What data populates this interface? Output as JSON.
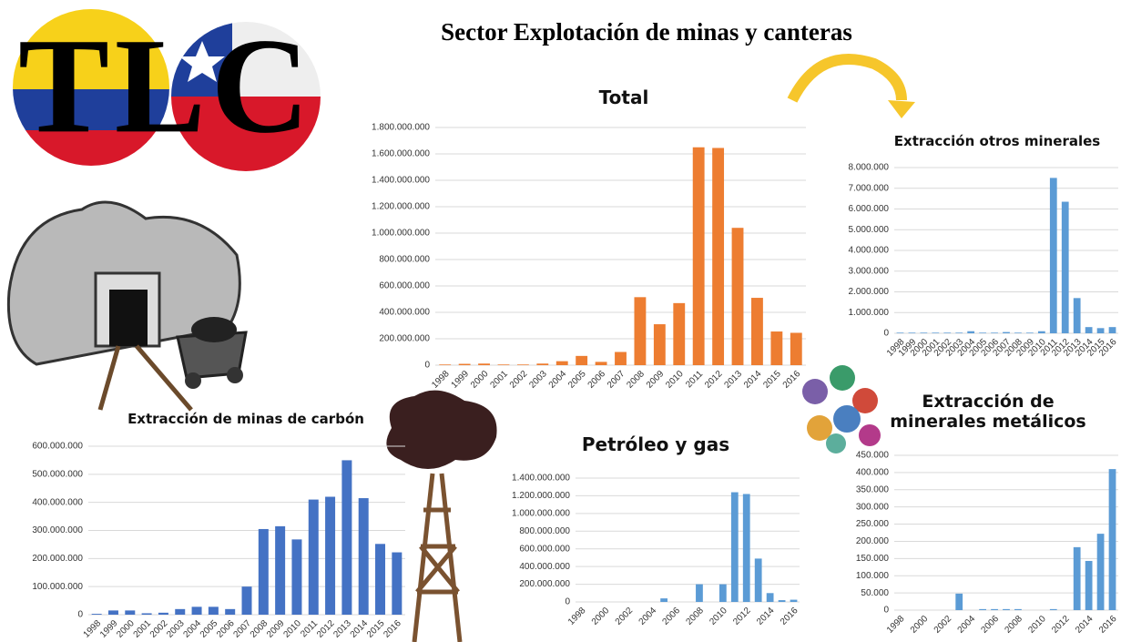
{
  "title": "Sector Explotación de minas y canteras",
  "logo": "TLC",
  "chart_data": [
    {
      "type": "bar",
      "title": "Total",
      "color": "#ed7d31",
      "grid": true,
      "categories": [
        "1998",
        "1999",
        "2000",
        "2001",
        "2002",
        "2003",
        "2004",
        "2005",
        "2006",
        "2007",
        "2008",
        "2009",
        "2010",
        "2011",
        "2012",
        "2013",
        "2014",
        "2015",
        "2016"
      ],
      "values": [
        5000000,
        10000000,
        12000000,
        5000000,
        5000000,
        12000000,
        30000000,
        70000000,
        25000000,
        100000000,
        515000000,
        310000000,
        470000000,
        1650000000,
        1645000000,
        1040000000,
        510000000,
        255000000,
        245000000
      ],
      "ylim": [
        0,
        1800000000
      ],
      "yticks": [
        0,
        {
          "value": 200000000,
          "label": "200.000.000"
        },
        {
          "value": 400000000,
          "label": "400.000.000"
        },
        {
          "value": 600000000,
          "label": "600.000.000"
        },
        {
          "value": 800000000,
          "label": "800.000.000"
        },
        {
          "value": 1000000000,
          "label": "1.000.000.000"
        },
        {
          "value": 1200000000,
          "label": "1.200.000.000"
        },
        {
          "value": 1400000000,
          "label": "1.400.000.000"
        },
        {
          "value": 1600000000,
          "label": "1.600.000.000"
        },
        {
          "value": 1800000000,
          "label": "1.800.000.000"
        }
      ]
    },
    {
      "type": "bar",
      "title": "Extracción otros minerales",
      "color": "#5b9bd5",
      "grid": true,
      "categories": [
        "1998",
        "1999",
        "2000",
        "2001",
        "2002",
        "2003",
        "2004",
        "2005",
        "2006",
        "2007",
        "2008",
        "2009",
        "2010",
        "2011",
        "2012",
        "2013",
        "2014",
        "2015",
        "2016"
      ],
      "values": [
        30000,
        30000,
        30000,
        30000,
        30000,
        30000,
        100000,
        30000,
        30000,
        60000,
        30000,
        30000,
        100000,
        7500000,
        6350000,
        1700000,
        300000,
        250000,
        300000
      ],
      "ylim": [
        0,
        8000000
      ],
      "yticks": [
        0,
        {
          "value": 1000000,
          "label": "1.000.000"
        },
        {
          "value": 2000000,
          "label": "2.000.000"
        },
        {
          "value": 3000000,
          "label": "3.000.000"
        },
        {
          "value": 4000000,
          "label": "4.000.000"
        },
        {
          "value": 5000000,
          "label": "5.000.000"
        },
        {
          "value": 6000000,
          "label": "6.000.000"
        },
        {
          "value": 7000000,
          "label": "7.000.000"
        },
        {
          "value": 8000000,
          "label": "8.000.000"
        }
      ]
    },
    {
      "type": "bar",
      "title": "Extracción de minas de carbón",
      "color": "#4472c4",
      "grid": true,
      "categories": [
        "1998",
        "1999",
        "2000",
        "2001",
        "2002",
        "2003",
        "2004",
        "2005",
        "2006",
        "2007",
        "2008",
        "2009",
        "2010",
        "2011",
        "2012",
        "2013",
        "2014",
        "2015",
        "2016"
      ],
      "values": [
        3000000,
        15000000,
        15000000,
        5000000,
        7000000,
        20000000,
        28000000,
        28000000,
        20000000,
        100000000,
        305000000,
        315000000,
        268000000,
        410000000,
        420000000,
        550000000,
        415000000,
        252000000,
        222000000
      ],
      "ylim": [
        0,
        600000000
      ],
      "yticks": [
        0,
        {
          "value": 100000000,
          "label": "100.000.000"
        },
        {
          "value": 200000000,
          "label": "200.000.000"
        },
        {
          "value": 300000000,
          "label": "300.000.000"
        },
        {
          "value": 400000000,
          "label": "400.000.000"
        },
        {
          "value": 500000000,
          "label": "500.000.000"
        },
        {
          "value": 600000000,
          "label": "600.000.000"
        }
      ]
    },
    {
      "type": "bar",
      "title": "Petróleo y gas",
      "color": "#5b9bd5",
      "grid": true,
      "categories": [
        "1998",
        null,
        "2000",
        null,
        "2002",
        null,
        "2004",
        null,
        "2006",
        null,
        "2008",
        null,
        "2010",
        null,
        "2012",
        null,
        "2014",
        null,
        "2016"
      ],
      "values": [
        0,
        0,
        0,
        0,
        0,
        0,
        0,
        40000000,
        0,
        0,
        200000000,
        0,
        200000000,
        1240000000,
        1220000000,
        490000000,
        100000000,
        20000000,
        25000000
      ],
      "ylim": [
        0,
        1400000000
      ],
      "yticks": [
        0,
        {
          "value": 200000000,
          "label": "200.000.000"
        },
        {
          "value": 400000000,
          "label": "400.000.000"
        },
        {
          "value": 600000000,
          "label": "600.000.000"
        },
        {
          "value": 800000000,
          "label": "800.000.000"
        },
        {
          "value": 1000000000,
          "label": "1.000.000.000"
        },
        {
          "value": 1200000000,
          "label": "1.200.000.000"
        },
        {
          "value": 1400000000,
          "label": "1.400.000.000"
        }
      ]
    },
    {
      "type": "bar",
      "title": "Extracción de minerales metálicos",
      "color": "#5b9bd5",
      "grid": true,
      "categories": [
        "1998",
        null,
        "2000",
        null,
        "2002",
        null,
        "2004",
        null,
        "2006",
        null,
        "2008",
        null,
        "2010",
        null,
        "2012",
        null,
        "2014",
        null,
        "2016"
      ],
      "values": [
        0,
        0,
        0,
        0,
        0,
        48000,
        0,
        3000,
        3000,
        3000,
        3000,
        0,
        0,
        3000,
        0,
        183000,
        143000,
        222000,
        410000
      ],
      "ylim": [
        0,
        450000
      ],
      "yticks": [
        0,
        {
          "value": 50000,
          "label": "50.000"
        },
        {
          "value": 100000,
          "label": "100.000"
        },
        {
          "value": 150000,
          "label": "150.000"
        },
        {
          "value": 200000,
          "label": "200.000"
        },
        {
          "value": 250000,
          "label": "250.000"
        },
        {
          "value": 300000,
          "label": "300.000"
        },
        {
          "value": 350000,
          "label": "350.000"
        },
        {
          "value": 400000,
          "label": "400.000"
        },
        {
          "value": 450000,
          "label": "450.000"
        }
      ]
    }
  ]
}
